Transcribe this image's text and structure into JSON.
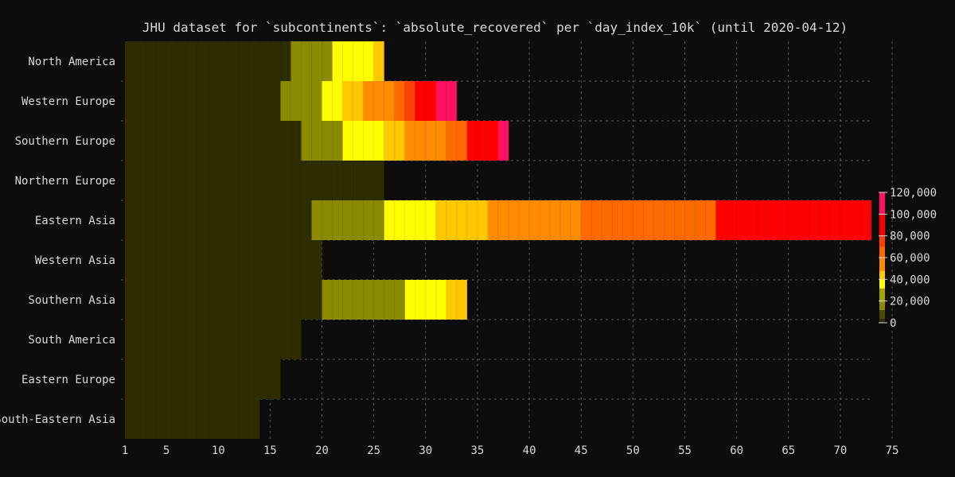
{
  "chart_data": {
    "type": "heatmap",
    "title": "JHU dataset for `subcontinents`: `absolute_recovered` per `day_index_10k` (until 2020-04-12)",
    "xlabel": "",
    "ylabel": "",
    "x_ticks": [
      1,
      5,
      10,
      15,
      20,
      25,
      30,
      35,
      40,
      45,
      50,
      55,
      60,
      65,
      70,
      75
    ],
    "xlim": [
      1,
      73
    ],
    "grid": true,
    "colorbar": {
      "ticks": [
        0,
        20000,
        40000,
        60000,
        80000,
        100000,
        120000
      ],
      "tick_labels": [
        "0",
        "20,000",
        "40,000",
        "60,000",
        "80,000",
        "100,000",
        "120,000"
      ],
      "max": 120000,
      "scale": [
        "#2e2d00",
        "#4a4a00",
        "#8b8b00",
        "#a3a300",
        "#ffff00",
        "#ffc800",
        "#ff8c00",
        "#ff6a00",
        "#ff4000",
        "#ff0000",
        "#ff1060",
        "#ff10c0"
      ]
    },
    "categories": [
      "North America",
      "Western Europe",
      "Southern Europe",
      "Northern Europe",
      "Eastern Asia",
      "Western Asia",
      "Southern Asia",
      "South America",
      "Eastern Europe",
      "South-Eastern Asia"
    ],
    "series": [
      {
        "category": "North America",
        "segments": [
          [
            1,
            17,
            2000
          ],
          [
            17,
            21,
            19000
          ],
          [
            21,
            25,
            36000
          ],
          [
            25,
            26,
            42000
          ]
        ]
      },
      {
        "category": "Western Europe",
        "segments": [
          [
            1,
            16,
            2500
          ],
          [
            16,
            20,
            17000
          ],
          [
            20,
            22,
            36000
          ],
          [
            22,
            24,
            42000
          ],
          [
            24,
            27,
            52000
          ],
          [
            27,
            28,
            60000
          ],
          [
            28,
            29,
            75000
          ],
          [
            29,
            31,
            90000
          ],
          [
            31,
            33,
            110000
          ]
        ]
      },
      {
        "category": "Southern Europe",
        "segments": [
          [
            1,
            18,
            2500
          ],
          [
            18,
            22,
            19000
          ],
          [
            22,
            26,
            36000
          ],
          [
            26,
            28,
            42000
          ],
          [
            28,
            32,
            54000
          ],
          [
            32,
            34,
            64000
          ],
          [
            34,
            37,
            82000
          ],
          [
            37,
            38,
            100000
          ]
        ]
      },
      {
        "category": "Northern Europe",
        "segments": [
          [
            1,
            26,
            2500
          ]
        ]
      },
      {
        "category": "Eastern Asia",
        "segments": [
          [
            1,
            19,
            2500
          ],
          [
            19,
            26,
            19000
          ],
          [
            26,
            31,
            37000
          ],
          [
            31,
            36,
            44000
          ],
          [
            36,
            45,
            54000
          ],
          [
            45,
            58,
            62000
          ],
          [
            58,
            73,
            80000
          ]
        ]
      },
      {
        "category": "Western Asia",
        "segments": [
          [
            1,
            20,
            2500
          ]
        ]
      },
      {
        "category": "Southern Asia",
        "segments": [
          [
            1,
            20,
            2500
          ],
          [
            20,
            28,
            19000
          ],
          [
            28,
            32,
            37000
          ],
          [
            32,
            34,
            42000
          ]
        ]
      },
      {
        "category": "South America",
        "segments": [
          [
            1,
            18,
            2500
          ]
        ]
      },
      {
        "category": "Eastern Europe",
        "segments": [
          [
            1,
            16,
            2500
          ]
        ]
      },
      {
        "category": "South-Eastern Asia",
        "segments": [
          [
            1,
            14,
            2500
          ]
        ]
      }
    ]
  }
}
